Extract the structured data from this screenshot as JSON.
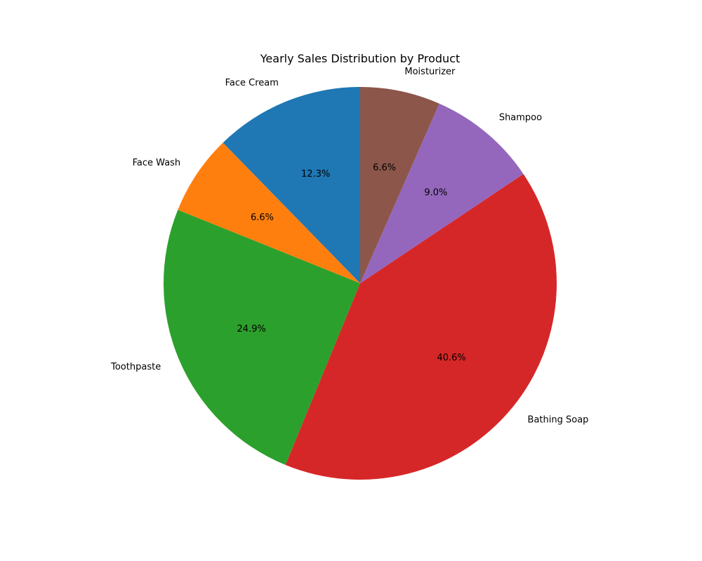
{
  "chart_data": {
    "type": "pie",
    "title": "Yearly Sales Distribution by Product",
    "start_angle_deg": 90,
    "direction": "counterclockwise",
    "slices": [
      {
        "label": "Face Cream",
        "value": 12.3,
        "pct_label": "12.3%",
        "color": "#1f77b4"
      },
      {
        "label": "Face Wash",
        "value": 6.6,
        "pct_label": "6.6%",
        "color": "#ff7f0e"
      },
      {
        "label": "Toothpaste",
        "value": 24.9,
        "pct_label": "24.9%",
        "color": "#2ca02c"
      },
      {
        "label": "Bathing Soap",
        "value": 40.6,
        "pct_label": "40.6%",
        "color": "#d62728"
      },
      {
        "label": "Shampoo",
        "value": 9.0,
        "pct_label": "9.0%",
        "color": "#9467bd"
      },
      {
        "label": "Moisturizer",
        "value": 6.6,
        "pct_label": "6.6%",
        "color": "#8c564b"
      }
    ]
  }
}
